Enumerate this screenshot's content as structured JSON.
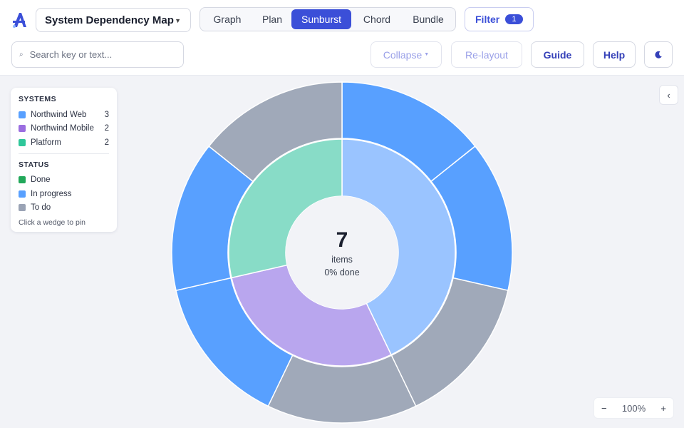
{
  "app": {
    "document_title": "System Dependency Map"
  },
  "views": {
    "tabs": [
      {
        "label": "Graph"
      },
      {
        "label": "Plan"
      },
      {
        "label": "Sunburst"
      },
      {
        "label": "Chord"
      },
      {
        "label": "Bundle"
      }
    ],
    "active": "Sunburst"
  },
  "filter": {
    "label": "Filter",
    "count": "1"
  },
  "search": {
    "placeholder": "Search key or text..."
  },
  "toolbar": {
    "collapse_label": "Collapse",
    "relayout_label": "Re-layout",
    "guide_label": "Guide",
    "help_label": "Help",
    "theme_icon": "moon-icon"
  },
  "legend": {
    "systems_heading": "SYSTEMS",
    "systems": [
      {
        "name": "Northwind Web",
        "count": "3",
        "color": "#58a0ff"
      },
      {
        "name": "Northwind Mobile",
        "count": "2",
        "color": "#9b6ee0"
      },
      {
        "name": "Platform",
        "count": "2",
        "color": "#2fc79a"
      }
    ],
    "status_heading": "STATUS",
    "statuses": [
      {
        "name": "Done",
        "color": "#22a85a"
      },
      {
        "name": "In progress",
        "color": "#58a0ff"
      },
      {
        "name": "To do",
        "color": "#9aa3b5"
      }
    ],
    "hint": "Click a wedge to pin"
  },
  "center": {
    "total": "7",
    "items_label": "items",
    "done_label": "0% done"
  },
  "zoom": {
    "minus": "−",
    "level": "100%",
    "plus": "+"
  },
  "colors": {
    "accent": "#3b4fd8",
    "in_progress": "#58a0ff",
    "to_do": "#a0a9b9",
    "web_inner": "#9ac4ff",
    "mobile_inner": "#b9a6ee",
    "platform_inner": "#88dcc7"
  },
  "chart_data": {
    "type": "sunburst",
    "inner_ring": [
      {
        "name": "Northwind Web",
        "value": 3,
        "color": "#9ac4ff"
      },
      {
        "name": "Northwind Mobile",
        "value": 2,
        "color": "#b9a6ee"
      },
      {
        "name": "Platform",
        "value": 2,
        "color": "#88dcc7"
      }
    ],
    "outer_ring": [
      {
        "system": "Northwind Web",
        "status": "In progress",
        "color": "#58a0ff"
      },
      {
        "system": "Northwind Web",
        "status": "In progress",
        "color": "#58a0ff"
      },
      {
        "system": "Northwind Web",
        "status": "To do",
        "color": "#a0a9b9"
      },
      {
        "system": "Northwind Mobile",
        "status": "To do",
        "color": "#a0a9b9"
      },
      {
        "system": "Northwind Mobile",
        "status": "In progress",
        "color": "#58a0ff"
      },
      {
        "system": "Platform",
        "status": "In progress",
        "color": "#58a0ff"
      },
      {
        "system": "Platform",
        "status": "To do",
        "color": "#a0a9b9"
      }
    ]
  }
}
